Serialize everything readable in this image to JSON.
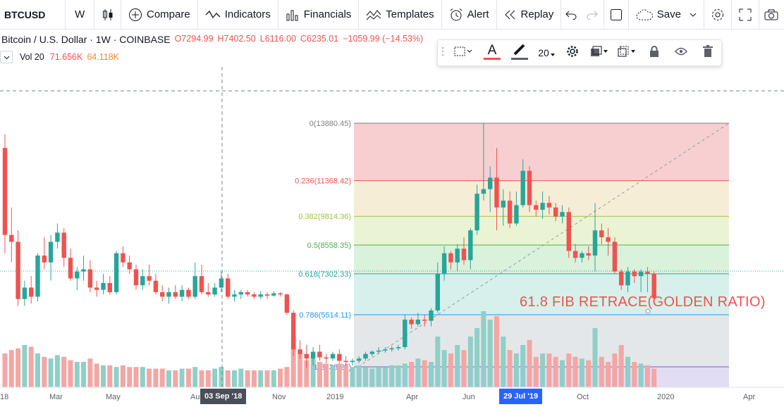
{
  "toolbar": {
    "symbol": "BTCUSD",
    "interval": "W",
    "compare": "Compare",
    "indicators": "Indicators",
    "financials": "Financials",
    "templates": "Templates",
    "alert": "Alert",
    "replay": "Replay",
    "save": "Save"
  },
  "legend": {
    "name": "Bitcoin / U.S. Dollar · 1W · COINBASE",
    "open": "O7294.99",
    "high": "H7402.50",
    "low": "L6116.00",
    "close": "C6235.01",
    "change": "−1059.99 (−14.53%)",
    "vol_label": "Vol 20",
    "vol_value1": "71.656K",
    "vol_value2": "64.118K"
  },
  "drawing_toolbar": {
    "line_width": "20"
  },
  "colors": {
    "up": "#26a69a",
    "down": "#ef5350",
    "vol_up": "#8fcfc7",
    "vol_down": "#f4a6a4",
    "annotation": "#ef5350"
  },
  "xaxis": {
    "labels": [
      {
        "t": "18"
      },
      {
        "t": "Mar"
      },
      {
        "t": "May"
      },
      {
        "t": "Au"
      },
      {
        "t": "Nov"
      },
      {
        "t": "2019"
      },
      {
        "t": "Apr"
      },
      {
        "t": "Jun"
      },
      {
        "t": "Oct"
      },
      {
        "t": "2020"
      },
      {
        "t": "Apr"
      }
    ],
    "badge_left": "03 Sep '18",
    "badge_right": "29 Jul '19"
  },
  "annotation": "61.8 FIB RETRACE(GOLDEN RATIO)",
  "chart_data": {
    "type": "candlestick",
    "fib_levels": [
      {
        "label": "0(13880.45)",
        "ratio": 0,
        "price": 13880.45
      },
      {
        "label": "0.236(11368.42)",
        "ratio": 0.236,
        "price": 11368.42
      },
      {
        "label": "0.382(9814.36)",
        "ratio": 0.382,
        "price": 9814.36
      },
      {
        "label": "0.5(8558.35)",
        "ratio": 0.5,
        "price": 8558.35
      },
      {
        "label": "0.618(7302.33)",
        "ratio": 0.618,
        "price": 7302.33
      },
      {
        "label": "0.786(5514.11)",
        "ratio": 0.786,
        "price": 5514.11
      },
      {
        "label": "1(3238.25)",
        "ratio": 1,
        "price": 3238.25
      }
    ],
    "ohlc": [
      [
        12800,
        13400,
        8200,
        9000
      ],
      [
        9000,
        10200,
        7800,
        8700
      ],
      [
        8700,
        9200,
        5900,
        6200
      ],
      [
        6200,
        7000,
        5900,
        6700
      ],
      [
        6700,
        7200,
        6000,
        6300
      ],
      [
        6300,
        8200,
        6100,
        8100
      ],
      [
        8100,
        8900,
        7500,
        7800
      ],
      [
        7800,
        9000,
        7000,
        8700
      ],
      [
        8700,
        9500,
        8400,
        9100
      ],
      [
        9100,
        9300,
        7600,
        8000
      ],
      [
        8000,
        8400,
        7000,
        7100
      ],
      [
        7100,
        7600,
        6600,
        7400
      ],
      [
        7400,
        8100,
        7000,
        7500
      ],
      [
        7500,
        7900,
        6500,
        6700
      ],
      [
        6700,
        7000,
        6300,
        6600
      ],
      [
        6600,
        7300,
        6400,
        6900
      ],
      [
        6900,
        7200,
        6400,
        6500
      ],
      [
        6500,
        8300,
        6400,
        8200
      ],
      [
        8200,
        8500,
        7600,
        7800
      ],
      [
        7800,
        8100,
        7300,
        7500
      ],
      [
        7500,
        7700,
        6600,
        6800
      ],
      [
        6800,
        7500,
        6600,
        7200
      ],
      [
        7200,
        7700,
        6800,
        7000
      ],
      [
        7000,
        7300,
        6400,
        6500
      ],
      [
        6500,
        6800,
        6100,
        6300
      ],
      [
        6300,
        6700,
        6000,
        6500
      ],
      [
        6500,
        6800,
        6200,
        6300
      ],
      [
        6300,
        6800,
        6100,
        6600
      ],
      [
        6600,
        6700,
        6200,
        6300
      ],
      [
        6300,
        7800,
        6200,
        7200
      ],
      [
        7200,
        7700,
        6400,
        6500
      ],
      [
        6500,
        6900,
        6300,
        6400
      ],
      [
        6400,
        6900,
        6300,
        6700
      ],
      [
        6700,
        7400,
        6500,
        7100
      ],
      [
        7100,
        7300,
        6200,
        6300
      ],
      [
        6300,
        6600,
        6100,
        6400
      ],
      [
        6400,
        6600,
        6200,
        6500
      ],
      [
        6500,
        6600,
        6300,
        6400
      ],
      [
        6400,
        6500,
        6200,
        6300
      ],
      [
        6300,
        6550,
        6200,
        6400
      ],
      [
        6400,
        6500,
        6200,
        6350
      ],
      [
        6350,
        6550,
        6300,
        6450
      ],
      [
        6450,
        6500,
        6300,
        6400
      ],
      [
        6400,
        6450,
        5500,
        5600
      ],
      [
        5600,
        5700,
        3700,
        4000
      ],
      [
        4000,
        4400,
        3600,
        3800
      ],
      [
        3800,
        4200,
        3200,
        3600
      ],
      [
        3600,
        4100,
        3300,
        3900
      ],
      [
        3900,
        4200,
        3500,
        3650
      ],
      [
        3650,
        3800,
        3400,
        3600
      ],
      [
        3600,
        3900,
        3500,
        3800
      ],
      [
        3800,
        4000,
        3400,
        3500
      ],
      [
        3500,
        3700,
        3300,
        3450
      ],
      [
        3450,
        3600,
        3300,
        3500
      ],
      [
        3500,
        3700,
        3400,
        3600
      ],
      [
        3600,
        3900,
        3500,
        3800
      ],
      [
        3800,
        3950,
        3700,
        3900
      ],
      [
        3900,
        4100,
        3800,
        3950
      ],
      [
        3950,
        4100,
        3850,
        4000
      ],
      [
        4000,
        4150,
        3900,
        4050
      ],
      [
        4050,
        4200,
        3950,
        4100
      ],
      [
        4100,
        5500,
        4000,
        5300
      ],
      [
        5300,
        5400,
        4900,
        5100
      ],
      [
        5100,
        5600,
        5000,
        5300
      ],
      [
        5300,
        5500,
        5000,
        5250
      ],
      [
        5250,
        5800,
        5000,
        5700
      ],
      [
        5700,
        7800,
        5600,
        7300
      ],
      [
        7300,
        8500,
        7000,
        8200
      ],
      [
        8200,
        8300,
        7500,
        7800
      ],
      [
        7800,
        8600,
        7400,
        8400
      ],
      [
        8400,
        8900,
        7700,
        7900
      ],
      [
        7900,
        9300,
        7500,
        9200
      ],
      [
        9200,
        11200,
        9000,
        10800
      ],
      [
        10800,
        13900,
        10500,
        11000
      ],
      [
        11000,
        12000,
        10000,
        11500
      ],
      [
        11500,
        12800,
        9200,
        10200
      ],
      [
        10200,
        11000,
        9400,
        10500
      ],
      [
        10500,
        10900,
        9300,
        9500
      ],
      [
        9500,
        10900,
        9400,
        10300
      ],
      [
        10300,
        12300,
        10200,
        11800
      ],
      [
        11800,
        12000,
        10000,
        10300
      ],
      [
        10300,
        10500,
        9800,
        10100
      ],
      [
        10100,
        10900,
        9700,
        10400
      ],
      [
        10400,
        10700,
        9900,
        10200
      ],
      [
        10200,
        10400,
        9600,
        9800
      ],
      [
        9800,
        10300,
        9500,
        10000
      ],
      [
        10000,
        10200,
        8000,
        8300
      ],
      [
        8300,
        8600,
        7800,
        8000
      ],
      [
        8000,
        8300,
        7800,
        8200
      ],
      [
        8200,
        8500,
        7900,
        8100
      ],
      [
        8100,
        10400,
        7400,
        9200
      ],
      [
        9200,
        9500,
        8600,
        8900
      ],
      [
        8900,
        9300,
        8100,
        8700
      ],
      [
        8700,
        8900,
        7300,
        7400
      ],
      [
        7400,
        7500,
        6600,
        6800
      ],
      [
        6800,
        7600,
        6500,
        7400
      ],
      [
        7400,
        7500,
        6900,
        7200
      ],
      [
        7200,
        7500,
        6500,
        7400
      ],
      [
        7400,
        7600,
        6500,
        7300
      ],
      [
        7300,
        7402,
        6116,
        6235
      ]
    ],
    "volume": [
      20,
      22,
      23,
      25,
      24,
      20,
      18,
      17,
      19,
      18,
      16,
      15,
      15,
      17,
      14,
      13,
      13,
      12,
      13,
      12,
      12,
      12,
      11,
      11,
      11,
      10,
      10,
      11,
      11,
      12,
      10,
      10,
      11,
      12,
      10,
      10,
      11,
      10,
      10,
      10,
      10,
      10,
      11,
      12,
      30,
      20,
      16,
      17,
      15,
      14,
      13,
      14,
      13,
      12,
      13,
      12,
      11,
      12,
      12,
      13,
      13,
      14,
      15,
      17,
      16,
      15,
      30,
      22,
      20,
      25,
      22,
      30,
      35,
      45,
      40,
      42,
      30,
      22,
      20,
      25,
      28,
      18,
      20,
      20,
      18,
      16,
      20,
      18,
      17,
      16,
      35,
      18,
      15,
      20,
      25,
      18,
      15,
      14,
      13,
      11
    ],
    "xlabels": [
      "18",
      "Mar",
      "May",
      "Aug",
      "Nov",
      "2019",
      "Apr",
      "Jun",
      "Oct",
      "2020",
      "Apr"
    ]
  }
}
